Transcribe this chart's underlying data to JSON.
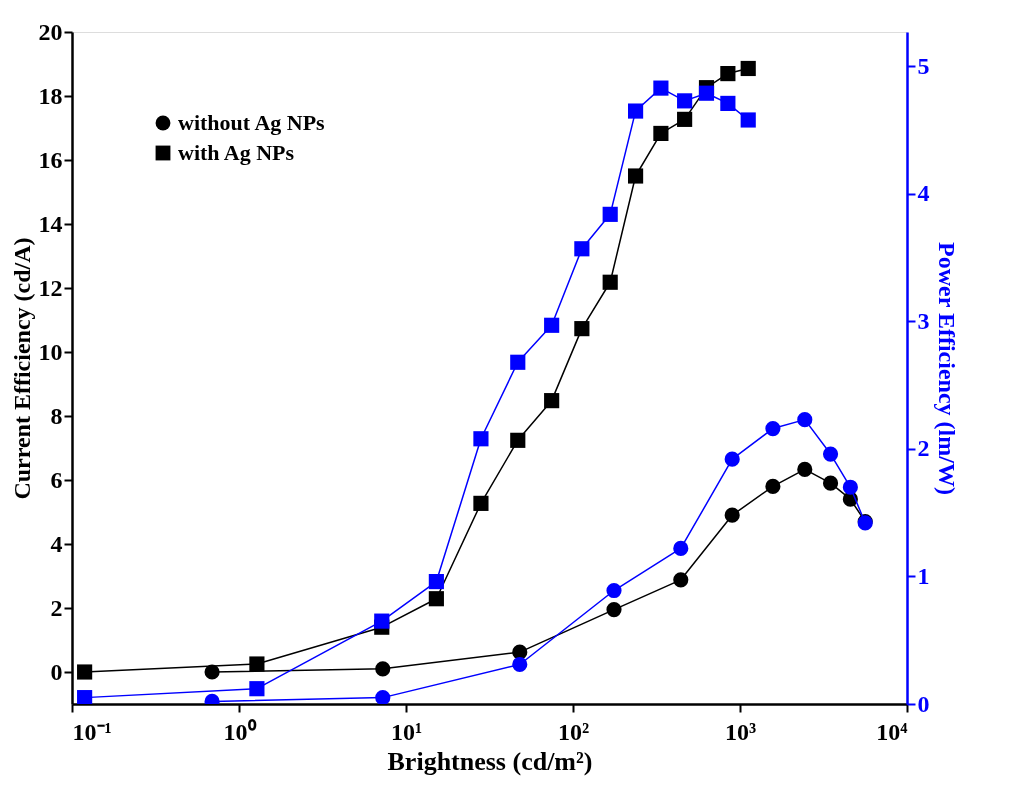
{
  "chart_data": {
    "type": "line",
    "xlabel": "Brightness (cd/m²)",
    "ylabel": "Current Efficiency (cd/A)",
    "y2label": "Power Efficiency (lm/W)",
    "log": "x",
    "grid": false,
    "legend": "top left",
    "line_style": "solid",
    "xlim": [
      0.1,
      10000
    ],
    "xticks": [
      {
        "value": 0.1,
        "label": "10⁻¹"
      },
      {
        "value": 1,
        "label": "10⁰"
      },
      {
        "value": 10,
        "label": "10¹"
      },
      {
        "value": 100,
        "label": "10²"
      },
      {
        "value": 1000,
        "label": "10³"
      },
      {
        "value": 10000,
        "label": "10⁴"
      }
    ],
    "ylim": [
      -1,
      20
    ],
    "yticks": [
      0,
      2,
      4,
      6,
      8,
      10,
      12,
      14,
      16,
      18,
      20
    ],
    "y2lim": [
      0,
      5.27
    ],
    "y2ticks": [
      0,
      1,
      2,
      3,
      4,
      5
    ],
    "series": [
      {
        "name": "without Ag NPs",
        "color": "#000000",
        "marker": "circle",
        "x": [
          0.69,
          7.26,
          48,
          176,
          442,
          898,
          1574,
          2443,
          3485,
          4580,
          5620
        ],
        "values": [
          0,
          0.1,
          0.62,
          1.95,
          2.88,
          4.9,
          5.8,
          6.33,
          5.9,
          5.4,
          4.7
        ]
      },
      {
        "name": "with Ag NPs",
        "color": "#000000",
        "marker": "square",
        "x": [
          0.119,
          1.28,
          7.16,
          15.2,
          28.1,
          46.7,
          74.5,
          113,
          167,
          237,
          336,
          466,
          630,
          846,
          1120
        ],
        "values": [
          0,
          0.25,
          1.4,
          2.29,
          5.27,
          7.24,
          8.48,
          10.73,
          12.18,
          15.5,
          16.83,
          17.27,
          18.26,
          18.7,
          18.86
        ]
      },
      {
        "color": "#0000ff",
        "marker": "circle",
        "axis": "y2",
        "x": [
          0.69,
          7.26,
          48,
          176,
          442,
          898,
          1574,
          2443,
          3485,
          4580,
          5620
        ],
        "values": [
          0.02,
          0.05,
          0.31,
          0.89,
          1.22,
          1.92,
          2.16,
          2.23,
          1.96,
          1.7,
          1.42
        ]
      },
      {
        "color": "#0000ff",
        "marker": "square",
        "axis": "y2",
        "x": [
          0.119,
          1.28,
          7.16,
          15.2,
          28.1,
          46.7,
          74.5,
          113,
          167,
          237,
          336,
          466,
          630,
          846,
          1120
        ],
        "values": [
          0.05,
          0.12,
          0.65,
          0.96,
          2.08,
          2.68,
          2.97,
          3.57,
          3.84,
          4.65,
          4.83,
          4.73,
          4.79,
          4.71,
          4.58
        ]
      }
    ]
  }
}
